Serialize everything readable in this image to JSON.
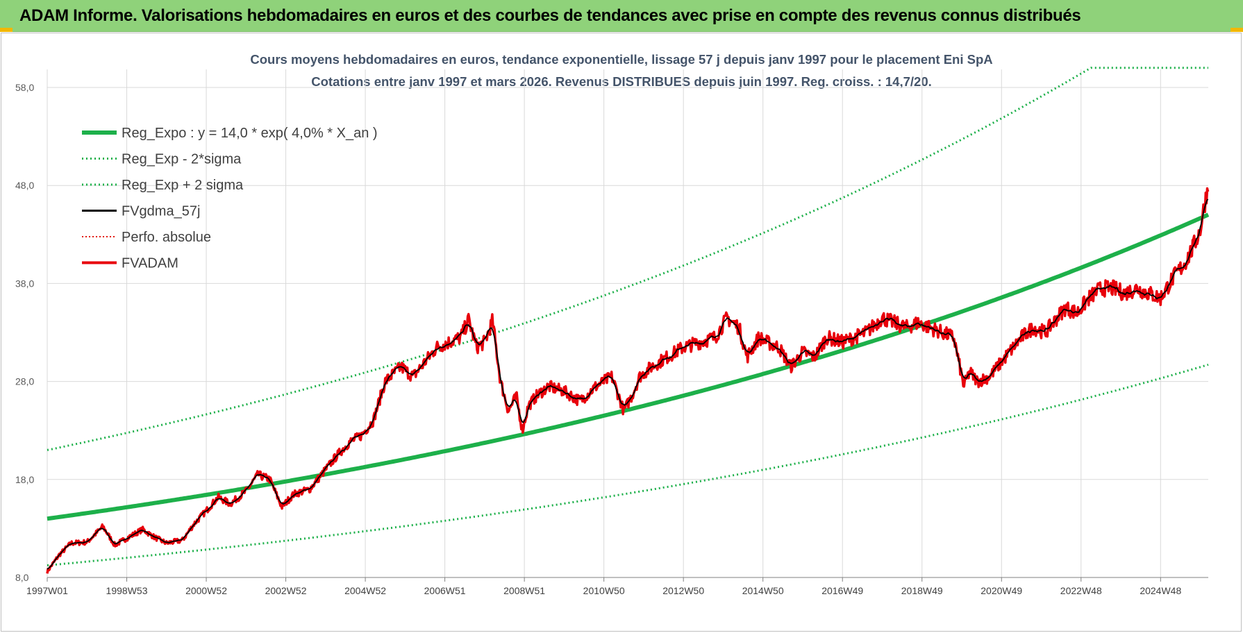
{
  "banner": {
    "title": "ADAM Informe. Valorisations hebdomadaires en euros et des courbes de tendances avec prise en compte des revenus connus distribués"
  },
  "chart_data": {
    "type": "line",
    "title": "Cours moyens hebdomadaires en euros, tendance exponentielle, lissage 57 j depuis janv 1997  pour le placement Eni SpA",
    "subtitle": "Cotations entre janv 1997 et mars 2026. Revenus DISTRIBUES depuis juin 1997. Reg. croiss. : 14,7/20.",
    "xlabel": "",
    "ylabel": "",
    "xlim": [
      1997.0,
      2026.2
    ],
    "ylim": [
      8,
      58
    ],
    "yticks": [
      "8,0",
      "18,0",
      "28,0",
      "38,0",
      "48,0",
      "58,0"
    ],
    "ytick_values": [
      8,
      18,
      28,
      38,
      48,
      58
    ],
    "xticks": [
      "1997W01",
      "1998W53",
      "2000W52",
      "2002W52",
      "2004W52",
      "2006W51",
      "2008W51",
      "2010W50",
      "2012W50",
      "2014W50",
      "2016W49",
      "2018W49",
      "2020W49",
      "2022W48",
      "2024W48"
    ],
    "xtick_values": [
      1997.0,
      1999.0,
      2001.0,
      2003.0,
      2005.0,
      2007.0,
      2009.0,
      2011.0,
      2013.0,
      2015.0,
      2017.0,
      2019.0,
      2021.0,
      2023.0,
      2025.0
    ],
    "grid": true,
    "legend_position": "top-left",
    "trend": {
      "a": 14.0,
      "rate": 0.04,
      "lower_factor": 0.66,
      "upper_factor": 1.5,
      "upper_cap": 60.0
    },
    "series": [
      {
        "name": "Reg_Expo : y = 14,0 * exp( 4,0% *  X_an )",
        "style": "thick",
        "color": "#1db04a"
      },
      {
        "name": "Reg_Exp - 2*sigma",
        "style": "dotted",
        "color": "#1db04a"
      },
      {
        "name": "Reg_Exp + 2 sigma",
        "style": "dotted",
        "color": "#1db04a"
      },
      {
        "name": "FVgdma_57j",
        "style": "solid",
        "color": "#000000"
      },
      {
        "name": "Perfo. absolue",
        "style": "dotted",
        "color": "#e3170a"
      },
      {
        "name": "FVADAM",
        "style": "thick",
        "color": "#e8000b"
      }
    ],
    "fvadam": {
      "x": [
        1997.0,
        1997.3,
        1997.6,
        1998.0,
        1998.4,
        1998.7,
        1999.0,
        1999.4,
        1999.7,
        2000.0,
        2000.4,
        2000.7,
        2001.0,
        2001.3,
        2001.6,
        2002.0,
        2002.3,
        2002.6,
        2002.9,
        2003.2,
        2003.6,
        2004.0,
        2004.3,
        2004.6,
        2004.9,
        2005.2,
        2005.5,
        2005.9,
        2006.2,
        2006.5,
        2006.8,
        2007.1,
        2007.4,
        2007.6,
        2007.8,
        2008.0,
        2008.2,
        2008.4,
        2008.6,
        2008.8,
        2008.95,
        2009.1,
        2009.3,
        2009.6,
        2010.0,
        2010.4,
        2010.8,
        2011.2,
        2011.5,
        2011.7,
        2011.9,
        2012.2,
        2012.6,
        2013.0,
        2013.4,
        2013.8,
        2014.1,
        2014.4,
        2014.6,
        2014.9,
        2015.1,
        2015.4,
        2015.7,
        2016.0,
        2016.3,
        2016.6,
        2017.0,
        2017.3,
        2017.6,
        2018.0,
        2018.3,
        2018.6,
        2018.9,
        2019.2,
        2019.5,
        2019.8,
        2020.05,
        2020.2,
        2020.4,
        2020.7,
        2020.9,
        2021.2,
        2021.5,
        2021.8,
        2022.1,
        2022.4,
        2022.6,
        2022.9,
        2023.2,
        2023.5,
        2023.8,
        2024.1,
        2024.4,
        2024.7,
        2025.0,
        2025.3,
        2025.6,
        2025.8,
        2026.0,
        2026.1,
        2026.2
      ],
      "y": [
        8.6,
        10.3,
        11.5,
        11.6,
        13.2,
        11.3,
        12.0,
        12.9,
        12.1,
        11.5,
        11.8,
        13.5,
        14.8,
        16.2,
        15.5,
        16.8,
        18.5,
        18.0,
        15.2,
        16.5,
        17.0,
        19.0,
        20.5,
        21.8,
        22.5,
        24.0,
        28.0,
        29.5,
        28.5,
        30.0,
        31.5,
        32.0,
        32.5,
        34.3,
        31.5,
        32.0,
        34.2,
        28.0,
        25.0,
        26.5,
        23.0,
        25.5,
        26.5,
        27.5,
        27.0,
        26.0,
        27.5,
        28.5,
        25.0,
        26.5,
        28.5,
        29.5,
        30.5,
        31.5,
        32.0,
        32.5,
        34.5,
        33.5,
        30.5,
        32.5,
        32.0,
        31.5,
        29.5,
        31.0,
        30.5,
        32.5,
        32.0,
        32.5,
        33.0,
        34.5,
        34.0,
        33.5,
        34.0,
        33.5,
        33.0,
        32.5,
        27.5,
        29.0,
        28.0,
        28.5,
        29.5,
        31.0,
        32.5,
        33.5,
        33.0,
        34.5,
        35.5,
        35.0,
        36.5,
        37.5,
        37.5,
        37.0,
        37.5,
        37.0,
        36.5,
        38.5,
        40.0,
        41.5,
        43.5,
        46.0,
        48.0
      ]
    }
  }
}
